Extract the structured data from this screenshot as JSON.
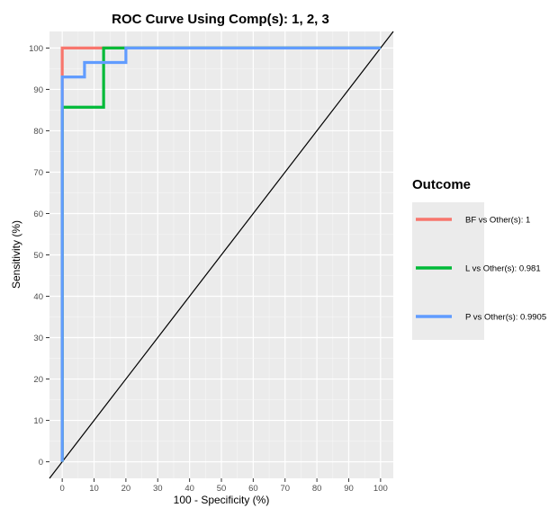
{
  "chart_data": {
    "type": "line",
    "title": "ROC Curve Using Comp(s): 1, 2, 3",
    "xlabel": "100 - Specificity (%)",
    "ylabel": "Sensitivity (%)",
    "xlim": [
      -4,
      104
    ],
    "ylim": [
      -4,
      104
    ],
    "xticks": [
      0,
      10,
      20,
      30,
      40,
      50,
      60,
      70,
      80,
      90,
      100
    ],
    "yticks": [
      0,
      10,
      20,
      30,
      40,
      50,
      60,
      70,
      80,
      90,
      100
    ],
    "grid": true,
    "legend_position": "right",
    "legend_title": "Outcome",
    "series": [
      {
        "name": "BF vs Other(s): 1",
        "color": "#f8766d",
        "x": [
          0,
          0,
          0,
          100
        ],
        "y": [
          0,
          93,
          100,
          100
        ]
      },
      {
        "name": "L vs Other(s): 0.981",
        "color": "#00ba38",
        "x": [
          0,
          0,
          13,
          13,
          100
        ],
        "y": [
          0,
          85.7,
          85.7,
          100,
          100
        ]
      },
      {
        "name": "P vs Other(s): 0.9905",
        "color": "#619cff",
        "x": [
          0,
          0,
          7,
          7,
          20,
          20,
          100
        ],
        "y": [
          0,
          93,
          93,
          96.5,
          96.5,
          100,
          100
        ]
      }
    ],
    "reference_line": {
      "color": "#000000",
      "x": [
        -4,
        104
      ],
      "y": [
        -4,
        104
      ]
    }
  }
}
